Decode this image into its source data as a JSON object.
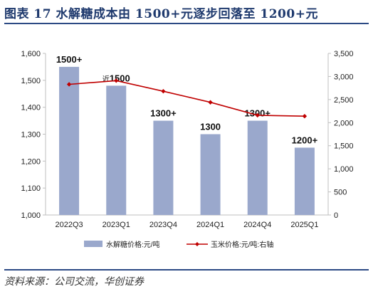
{
  "figure": {
    "title": "图表 17   水解糖成本由 1500+元逐步回落至 1200+元",
    "source": "资料来源：公司交流，华创证券"
  },
  "colors": {
    "bar": "#9aa8cc",
    "line": "#c00000",
    "axis": "#bfbfbf",
    "title": "#1f3a6e"
  },
  "chart_data": {
    "type": "bar",
    "categories": [
      "2022Q3",
      "2023Q1",
      "2023Q4",
      "2024Q1",
      "2024Q4",
      "2025Q1"
    ],
    "series": [
      {
        "name": "水解糖价格:元/吨",
        "type": "bar",
        "axis": "left",
        "values": [
          1550,
          1480,
          1350,
          1300,
          1350,
          1250
        ],
        "labels": [
          "1500+",
          "近1500",
          "1300+",
          "1300",
          "1300+",
          "1200+"
        ]
      },
      {
        "name": "玉米价格:元/吨:右轴",
        "type": "line",
        "axis": "right",
        "values": [
          2830,
          2910,
          2680,
          2440,
          2160,
          2140
        ]
      }
    ],
    "y_left": {
      "min": 1000,
      "max": 1600,
      "ticks": [
        "1,000",
        "1,100",
        "1,200",
        "1,300",
        "1,400",
        "1,500",
        "1,600"
      ]
    },
    "y_right": {
      "min": 0,
      "max": 3500,
      "ticks": [
        "0",
        "500",
        "1,000",
        "1,500",
        "2,000",
        "2,500",
        "3,000",
        "3,500"
      ]
    },
    "legend": "bottom"
  }
}
